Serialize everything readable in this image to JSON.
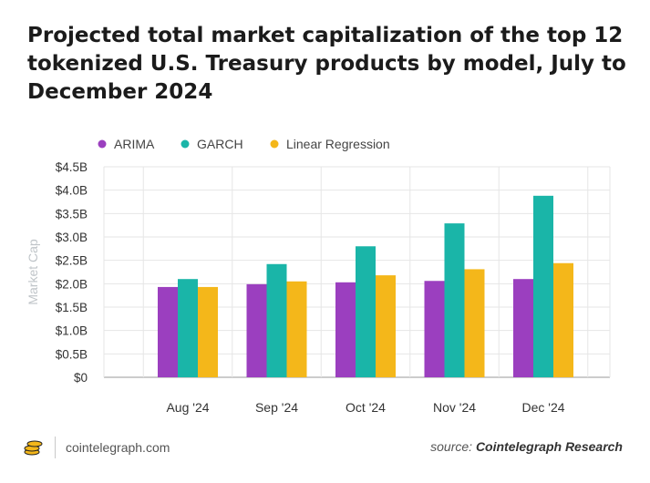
{
  "colors": {
    "arima": "#9b3fbf",
    "garch": "#1ab5a8",
    "linear": "#f4b71a",
    "grid": "#e6e6e6",
    "axis_text": "#333333",
    "ylabel": "#bfc4c8"
  },
  "footer": {
    "site": "cointelegraph.com",
    "source_prefix": "source:",
    "source_name": "Cointelegraph Research",
    "logo_icon": "cointelegraph-coins-icon"
  },
  "chart_data": {
    "type": "bar",
    "title": "Projected total market capitalization of the top 12 tokenized U.S. Treasury products by model, July to December 2024",
    "xlabel": "",
    "ylabel": "Market Cap",
    "categories": [
      "Aug '24",
      "Sep '24",
      "Oct '24",
      "Nov '24",
      "Dec '24"
    ],
    "series": [
      {
        "name": "ARIMA",
        "color": "#9b3fbf",
        "values": [
          1.93,
          1.99,
          2.03,
          2.06,
          2.1
        ]
      },
      {
        "name": "GARCH",
        "color": "#1ab5a8",
        "values": [
          2.1,
          2.42,
          2.8,
          3.29,
          3.88
        ]
      },
      {
        "name": "Linear Regression",
        "color": "#f4b71a",
        "values": [
          1.93,
          2.05,
          2.18,
          2.31,
          2.44
        ]
      }
    ],
    "ylim": [
      0,
      4.5
    ],
    "yticks": [
      0,
      0.5,
      1,
      1.5,
      2,
      2.5,
      3,
      3.5,
      4,
      4.5
    ],
    "ytick_labels": [
      "$0",
      "$0.5B",
      "$1.0B",
      "$1.5B",
      "$2.0B",
      "$2.5B",
      "$3.0B",
      "$3.5B",
      "$4.0B",
      "$4.5B"
    ],
    "grid": true,
    "legend_position": "top-left"
  }
}
